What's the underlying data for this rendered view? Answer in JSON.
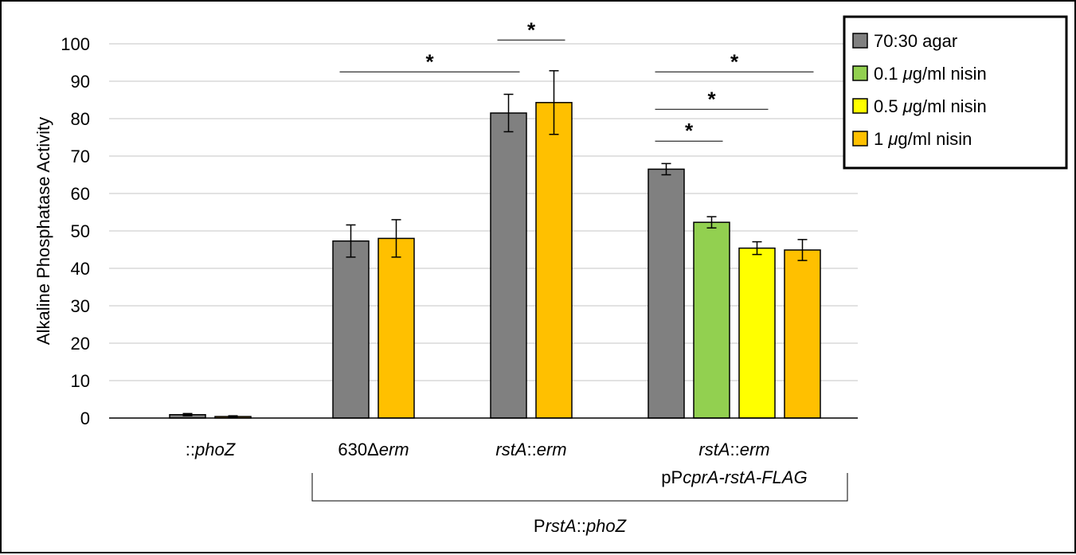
{
  "chart_data": {
    "type": "bar",
    "title": "",
    "xlabel": "",
    "ylabel": "Alkaline Phosphatase Activity",
    "ylim": [
      0,
      100
    ],
    "yticks": [
      0,
      10,
      20,
      30,
      40,
      50,
      60,
      70,
      80,
      90,
      100
    ],
    "grid": true,
    "legend_position": "top-right",
    "series_legend": [
      {
        "name": "70:30 agar",
        "color": "#808080"
      },
      {
        "name": "0.1 μg/ml nisin",
        "color": "#92d050"
      },
      {
        "name": "0.5 μg/ml nisin",
        "color": "#ffff00"
      },
      {
        "name": "1 μg/ml nisin",
        "color": "#ffc000"
      }
    ],
    "groups": [
      {
        "label_parts": [
          {
            "t": "::",
            "i": false
          },
          {
            "t": "phoZ",
            "i": true
          }
        ],
        "label2_parts": [],
        "bars": [
          {
            "series": "70:30 agar",
            "value": 0.9,
            "error": 0.3
          },
          {
            "series": "1 μg/ml nisin",
            "value": 0.4,
            "error": 0.2
          }
        ]
      },
      {
        "label_parts": [
          {
            "t": "630Δ",
            "i": false
          },
          {
            "t": "erm",
            "i": true
          }
        ],
        "label2_parts": [],
        "bars": [
          {
            "series": "70:30 agar",
            "value": 47.3,
            "error": 4.3
          },
          {
            "series": "1 μg/ml nisin",
            "value": 48.0,
            "error": 5.0
          }
        ]
      },
      {
        "label_parts": [
          {
            "t": "rstA",
            "i": true
          },
          {
            "t": "::",
            "i": false
          },
          {
            "t": "erm",
            "i": true
          }
        ],
        "label2_parts": [],
        "bars": [
          {
            "series": "70:30 agar",
            "value": 81.5,
            "error": 5.0
          },
          {
            "series": "1 μg/ml nisin",
            "value": 84.3,
            "error": 8.5
          }
        ]
      },
      {
        "label_parts": [
          {
            "t": "rstA",
            "i": true
          },
          {
            "t": "::",
            "i": false
          },
          {
            "t": "erm",
            "i": true
          }
        ],
        "label2_parts": [
          {
            "t": "pP",
            "i": false
          },
          {
            "t": "cprA-rstA-FLAG",
            "i": true
          }
        ],
        "bars": [
          {
            "series": "70:30 agar",
            "value": 66.5,
            "error": 1.5
          },
          {
            "series": "0.1 μg/ml nisin",
            "value": 52.3,
            "error": 1.5
          },
          {
            "series": "0.5 μg/ml nisin",
            "value": 45.4,
            "error": 1.7
          },
          {
            "series": "1 μg/ml nisin",
            "value": 44.9,
            "error": 2.8
          }
        ]
      }
    ],
    "bracket_label_parts": [
      {
        "t": "P",
        "i": false
      },
      {
        "t": "rstA",
        "i": true
      },
      {
        "t": "::",
        "i": false
      },
      {
        "t": "phoZ",
        "i": true
      }
    ],
    "significance": [
      {
        "from": [
          1,
          0
        ],
        "to": [
          2,
          0
        ],
        "y": 92.5,
        "label": "*"
      },
      {
        "from": [
          2,
          0
        ],
        "to": [
          2,
          1
        ],
        "y": 101,
        "label": "*"
      },
      {
        "from": [
          3,
          0
        ],
        "to": [
          3,
          3
        ],
        "y": 92.5,
        "label": "*"
      },
      {
        "from": [
          3,
          0
        ],
        "to": [
          3,
          2
        ],
        "y": 82.5,
        "label": "*"
      },
      {
        "from": [
          3,
          0
        ],
        "to": [
          3,
          1
        ],
        "y": 74,
        "label": "*"
      }
    ]
  }
}
